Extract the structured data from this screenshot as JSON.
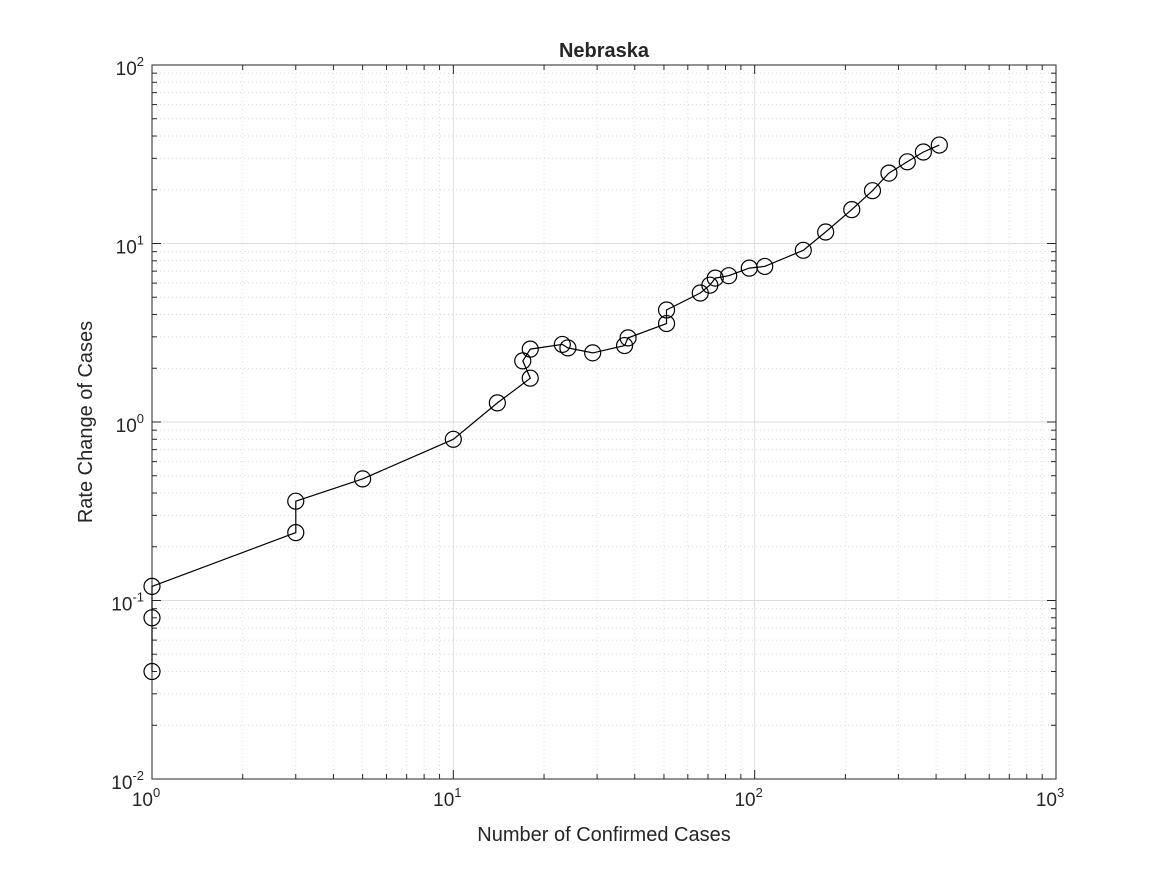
{
  "chart_data": {
    "type": "line",
    "title": "Nebraska",
    "xlabel": "Number of Confirmed Cases",
    "ylabel": "Rate Change of Cases",
    "x_scale": "log",
    "y_scale": "log",
    "xlim": [
      1,
      1000
    ],
    "ylim": [
      0.01,
      100
    ],
    "grid": true,
    "minor_grid": true,
    "marker": "open-circle",
    "line_color": "#000000",
    "x_ticks": [
      {
        "value": 1,
        "base": "10",
        "exp": "0"
      },
      {
        "value": 10,
        "base": "10",
        "exp": "1"
      },
      {
        "value": 100,
        "base": "10",
        "exp": "2"
      },
      {
        "value": 1000,
        "base": "10",
        "exp": "3"
      }
    ],
    "y_ticks": [
      {
        "value": 0.01,
        "base": "10",
        "exp": "-2"
      },
      {
        "value": 0.1,
        "base": "10",
        "exp": "-1"
      },
      {
        "value": 1,
        "base": "10",
        "exp": "0"
      },
      {
        "value": 10,
        "base": "10",
        "exp": "1"
      },
      {
        "value": 100,
        "base": "10",
        "exp": "2"
      }
    ],
    "series": [
      {
        "points": [
          {
            "x": 1,
            "y": 0.04
          },
          {
            "x": 1,
            "y": 0.08
          },
          {
            "x": 1,
            "y": 0.12
          },
          {
            "x": 3,
            "y": 0.24
          },
          {
            "x": 3,
            "y": 0.36
          },
          {
            "x": 5,
            "y": 0.48
          },
          {
            "x": 10,
            "y": 0.8
          },
          {
            "x": 14,
            "y": 1.28
          },
          {
            "x": 18,
            "y": 1.76
          },
          {
            "x": 17,
            "y": 2.2
          },
          {
            "x": 18,
            "y": 2.56
          },
          {
            "x": 23,
            "y": 2.72
          },
          {
            "x": 24,
            "y": 2.6
          },
          {
            "x": 29,
            "y": 2.44
          },
          {
            "x": 37,
            "y": 2.68
          },
          {
            "x": 38,
            "y": 2.96
          },
          {
            "x": 51,
            "y": 3.56
          },
          {
            "x": 51,
            "y": 4.24
          },
          {
            "x": 66,
            "y": 5.28
          },
          {
            "x": 71,
            "y": 5.84
          },
          {
            "x": 74,
            "y": 6.4
          },
          {
            "x": 82,
            "y": 6.6
          },
          {
            "x": 96,
            "y": 7.28
          },
          {
            "x": 108,
            "y": 7.44
          },
          {
            "x": 145,
            "y": 9.16
          },
          {
            "x": 172,
            "y": 11.6
          },
          {
            "x": 210,
            "y": 15.48
          },
          {
            "x": 246,
            "y": 19.76
          },
          {
            "x": 279,
            "y": 24.8
          },
          {
            "x": 321,
            "y": 28.68
          },
          {
            "x": 363,
            "y": 32.56
          },
          {
            "x": 410,
            "y": 35.6
          }
        ]
      }
    ]
  }
}
